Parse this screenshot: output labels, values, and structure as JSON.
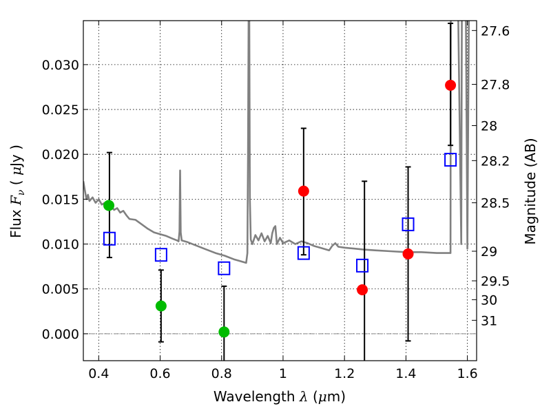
{
  "chart_data": {
    "type": "scatter",
    "title": "",
    "xlabel_parts": {
      "pre": "Wavelength  ",
      "sym": "λ",
      "post": " (",
      "mu": "μ",
      "unit": "m)"
    },
    "ylabel_parts": {
      "pre": "Flux  ",
      "sym": "F",
      "sub": "ν",
      "post": "  ( ",
      "mu": "μ",
      "unit": "Jy )"
    },
    "y2label": "Magnitude (AB)",
    "xlim": [
      0.35,
      1.63
    ],
    "ylim": [
      -0.003,
      0.0349
    ],
    "grid": true,
    "x_ticks": [
      0.4,
      0.6,
      0.8,
      1.0,
      1.2,
      1.4,
      1.6
    ],
    "x_tick_labels": [
      "0.4",
      "0.6",
      "0.8",
      "1",
      "1.2",
      "1.4",
      "1.6"
    ],
    "y_ticks": [
      0.0,
      0.005,
      0.01,
      0.015,
      0.02,
      0.025,
      0.03
    ],
    "y_tick_labels": [
      "0.000",
      "0.005",
      "0.010",
      "0.015",
      "0.020",
      "0.025",
      "0.030"
    ],
    "y2_ticks": [
      {
        "label": "27.6",
        "flux": 0.0338
      },
      {
        "label": "27.8",
        "flux": 0.0278
      },
      {
        "label": "28",
        "flux": 0.0232
      },
      {
        "label": "28.2",
        "flux": 0.0193
      },
      {
        "label": "28.5",
        "flux": 0.0146
      },
      {
        "label": "29",
        "flux": 0.0092
      },
      {
        "label": "29.5",
        "flux": 0.0059
      },
      {
        "label": "30",
        "flux": 0.0038
      },
      {
        "label": "31",
        "flux": 0.0015
      }
    ],
    "template_spectrum": {
      "color": "#808080",
      "points": [
        [
          0.35,
          0.017
        ],
        [
          0.355,
          0.016
        ],
        [
          0.36,
          0.015
        ],
        [
          0.365,
          0.0155
        ],
        [
          0.37,
          0.0148
        ],
        [
          0.38,
          0.0152
        ],
        [
          0.39,
          0.0146
        ],
        [
          0.4,
          0.015
        ],
        [
          0.41,
          0.0144
        ],
        [
          0.42,
          0.0146
        ],
        [
          0.43,
          0.0141
        ],
        [
          0.44,
          0.0143
        ],
        [
          0.45,
          0.0138
        ],
        [
          0.46,
          0.014
        ],
        [
          0.47,
          0.0135
        ],
        [
          0.48,
          0.0137
        ],
        [
          0.49,
          0.0132
        ],
        [
          0.5,
          0.0128
        ],
        [
          0.52,
          0.0127
        ],
        [
          0.54,
          0.0122
        ],
        [
          0.56,
          0.0117
        ],
        [
          0.58,
          0.0113
        ],
        [
          0.6,
          0.0111
        ],
        [
          0.62,
          0.0109
        ],
        [
          0.64,
          0.0106
        ],
        [
          0.655,
          0.0104
        ],
        [
          0.66,
          0.0103
        ],
        [
          0.663,
          0.0114
        ],
        [
          0.665,
          0.0182
        ],
        [
          0.667,
          0.0113
        ],
        [
          0.67,
          0.0104
        ],
        [
          0.69,
          0.0102
        ],
        [
          0.72,
          0.0098
        ],
        [
          0.75,
          0.0094
        ],
        [
          0.78,
          0.009
        ],
        [
          0.81,
          0.0087
        ],
        [
          0.84,
          0.0083
        ],
        [
          0.86,
          0.0081
        ],
        [
          0.88,
          0.0079
        ],
        [
          0.884,
          0.009
        ],
        [
          0.886,
          0.02
        ],
        [
          0.888,
          0.036
        ],
        [
          0.89,
          0.036
        ],
        [
          0.892,
          0.015
        ],
        [
          0.895,
          0.0105
        ],
        [
          0.9,
          0.01
        ],
        [
          0.91,
          0.011
        ],
        [
          0.92,
          0.0104
        ],
        [
          0.93,
          0.0112
        ],
        [
          0.94,
          0.0103
        ],
        [
          0.95,
          0.0109
        ],
        [
          0.96,
          0.0101
        ],
        [
          0.965,
          0.0112
        ],
        [
          0.97,
          0.0118
        ],
        [
          0.975,
          0.012
        ],
        [
          0.98,
          0.01
        ],
        [
          0.99,
          0.0107
        ],
        [
          1.0,
          0.0101
        ],
        [
          1.02,
          0.0104
        ],
        [
          1.04,
          0.01
        ],
        [
          1.06,
          0.0103
        ],
        [
          1.08,
          0.0101
        ],
        [
          1.1,
          0.0098
        ],
        [
          1.12,
          0.0096
        ],
        [
          1.15,
          0.0093
        ],
        [
          1.16,
          0.0098
        ],
        [
          1.17,
          0.0101
        ],
        [
          1.18,
          0.0097
        ],
        [
          1.2,
          0.0096
        ],
        [
          1.23,
          0.0095
        ],
        [
          1.26,
          0.0094
        ],
        [
          1.3,
          0.0093
        ],
        [
          1.35,
          0.0092
        ],
        [
          1.4,
          0.0091
        ],
        [
          1.45,
          0.0091
        ],
        [
          1.5,
          0.009
        ],
        [
          1.54,
          0.009
        ],
        [
          1.545,
          0.009
        ],
        [
          1.546,
          0.036
        ],
        [
          1.57,
          0.036
        ],
        [
          1.58,
          0.01
        ],
        [
          1.582,
          0.036
        ],
        [
          1.595,
          0.036
        ],
        [
          1.6,
          0.0095
        ],
        [
          1.605,
          0.036
        ],
        [
          1.63,
          0.036
        ]
      ]
    },
    "observed_green": {
      "color": "#00bb00",
      "points": [
        {
          "x": 0.433,
          "y": 0.0143
        },
        {
          "x": 0.603,
          "y": 0.0031
        },
        {
          "x": 0.808,
          "y": 0.0002
        }
      ]
    },
    "observed_red": {
      "color": "#ff0000",
      "points": [
        {
          "x": 1.067,
          "y": 0.0159
        },
        {
          "x": 1.258,
          "y": 0.0049
        },
        {
          "x": 1.407,
          "y": 0.0089
        },
        {
          "x": 1.545,
          "y": 0.0277
        }
      ]
    },
    "model_squares": {
      "color": "#0000ff",
      "points": [
        {
          "x": 0.435,
          "y": 0.0106
        },
        {
          "x": 0.603,
          "y": 0.0088
        },
        {
          "x": 0.808,
          "y": 0.0073
        },
        {
          "x": 1.067,
          "y": 0.009
        },
        {
          "x": 1.258,
          "y": 0.0076
        },
        {
          "x": 1.407,
          "y": 0.0122
        },
        {
          "x": 1.545,
          "y": 0.0194
        }
      ]
    },
    "error_bars": [
      {
        "x": 0.435,
        "low": 0.0085,
        "high": 0.0202
      },
      {
        "x": 0.603,
        "low": -0.0009,
        "high": 0.0071
      },
      {
        "x": 0.808,
        "low": -0.004,
        "high": 0.0053
      },
      {
        "x": 1.067,
        "low": 0.0088,
        "high": 0.0229
      },
      {
        "x": 1.265,
        "low": -0.004,
        "high": 0.017
      },
      {
        "x": 1.407,
        "low": -0.0008,
        "high": 0.0186
      },
      {
        "x": 1.545,
        "low": 0.021,
        "high": 0.0346
      }
    ]
  }
}
